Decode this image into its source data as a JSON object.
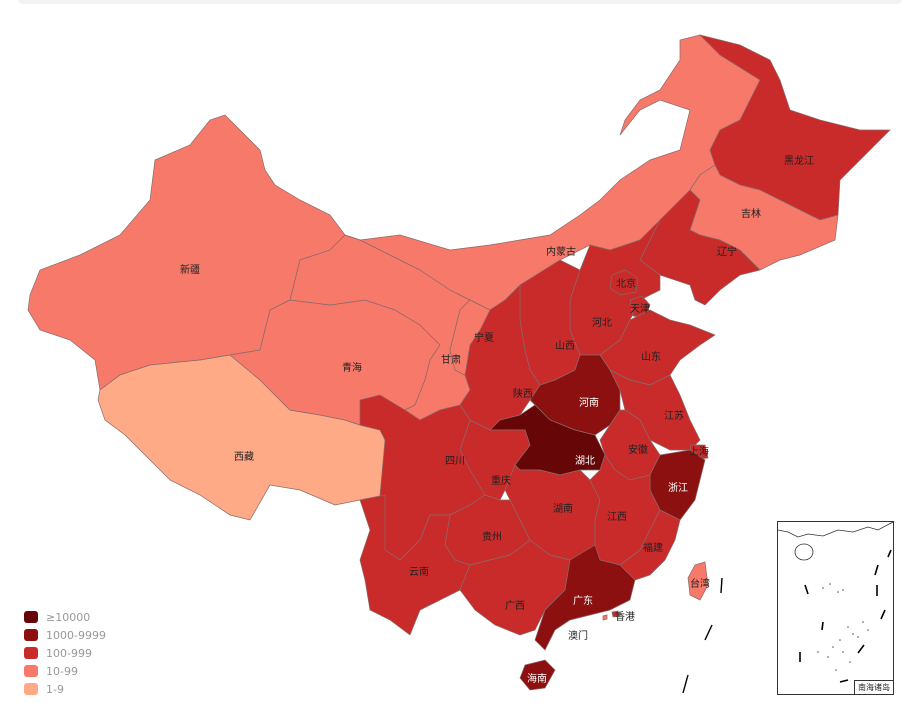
{
  "legend": {
    "items": [
      {
        "label": "≥10000",
        "color": "#660606"
      },
      {
        "label": "1000-9999",
        "color": "#8c1010"
      },
      {
        "label": "100-999",
        "color": "#c92a2a"
      },
      {
        "label": "10-99",
        "color": "#f7796a"
      },
      {
        "label": "1-9",
        "color": "#ffaa86"
      }
    ]
  },
  "inset": {
    "label": "南海诸岛"
  },
  "provinces": [
    {
      "id": "xinjiang",
      "label": "新疆",
      "tier": 3
    },
    {
      "id": "xizang",
      "label": "西藏",
      "tier": 4
    },
    {
      "id": "qinghai",
      "label": "青海",
      "tier": 3
    },
    {
      "id": "gansu",
      "label": "甘肃",
      "tier": 3
    },
    {
      "id": "neimenggu",
      "label": "内蒙古",
      "tier": 3
    },
    {
      "id": "heilongjiang",
      "label": "黑龙江",
      "tier": 2
    },
    {
      "id": "jilin",
      "label": "吉林",
      "tier": 3
    },
    {
      "id": "liaoning",
      "label": "辽宁",
      "tier": 2
    },
    {
      "id": "hebei",
      "label": "河北",
      "tier": 2
    },
    {
      "id": "beijing",
      "label": "北京",
      "tier": 2
    },
    {
      "id": "tianjin",
      "label": "天津",
      "tier": 2
    },
    {
      "id": "shanxi",
      "label": "山西",
      "tier": 2
    },
    {
      "id": "shaanxi",
      "label": "陕西",
      "tier": 2
    },
    {
      "id": "ningxia",
      "label": "宁夏",
      "tier": 3
    },
    {
      "id": "shandong",
      "label": "山东",
      "tier": 2
    },
    {
      "id": "henan",
      "label": "河南",
      "tier": 1
    },
    {
      "id": "jiangsu",
      "label": "江苏",
      "tier": 2
    },
    {
      "id": "anhui",
      "label": "安徽",
      "tier": 2
    },
    {
      "id": "shanghai",
      "label": "上海",
      "tier": 2
    },
    {
      "id": "zhejiang",
      "label": "浙江",
      "tier": 1
    },
    {
      "id": "hubei",
      "label": "湖北",
      "tier": 0
    },
    {
      "id": "chongqing",
      "label": "重庆",
      "tier": 2
    },
    {
      "id": "sichuan",
      "label": "四川",
      "tier": 2
    },
    {
      "id": "hunan",
      "label": "湖南",
      "tier": 2
    },
    {
      "id": "jiangxi",
      "label": "江西",
      "tier": 2
    },
    {
      "id": "fujian",
      "label": "福建",
      "tier": 2
    },
    {
      "id": "guizhou",
      "label": "贵州",
      "tier": 2
    },
    {
      "id": "yunnan",
      "label": "云南",
      "tier": 2
    },
    {
      "id": "guangxi",
      "label": "广西",
      "tier": 2
    },
    {
      "id": "guangdong",
      "label": "广东",
      "tier": 1
    },
    {
      "id": "hainan",
      "label": "海南",
      "tier": 1
    },
    {
      "id": "taiwan",
      "label": "台湾",
      "tier": 3
    },
    {
      "id": "xianggang",
      "label": "香港",
      "tier": 2
    },
    {
      "id": "aomen",
      "label": "澳门",
      "tier": 3
    }
  ]
}
